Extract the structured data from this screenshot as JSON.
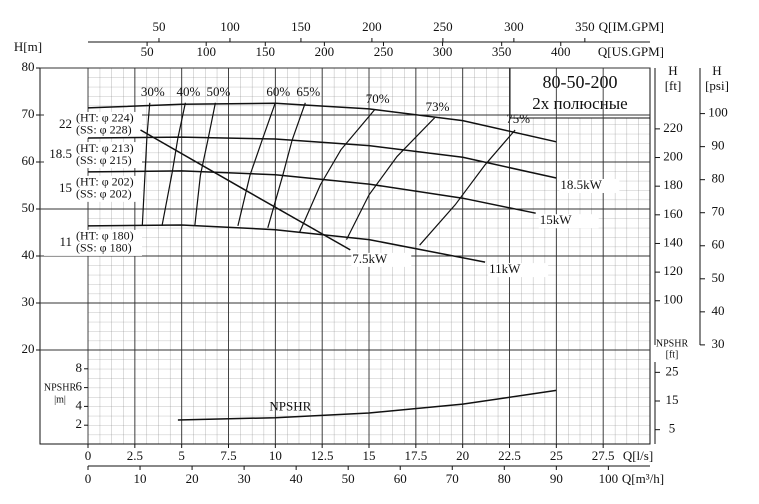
{
  "chart_data": {
    "type": "line",
    "title": "80-50-200",
    "subtitle": "2х  полюсные",
    "xlabel": "Q[l/s]",
    "xlim": [
      0,
      30
    ],
    "xticks": [
      0,
      2.5,
      5,
      7.5,
      10,
      12.5,
      15,
      17.5,
      20,
      22.5,
      25,
      27.5
    ],
    "x2label": "Q[m³/h]",
    "x2lim": [
      0,
      108
    ],
    "x2ticks": [
      0,
      10,
      20,
      30,
      40,
      50,
      60,
      70,
      80,
      90,
      100
    ],
    "x3label": "Q[US.GPM]",
    "x3lim": [
      0,
      475.5
    ],
    "x3ticks": [
      50,
      100,
      150,
      200,
      250,
      300,
      350,
      400
    ],
    "x4label": "Q[IM.GPM]",
    "x4lim": [
      0,
      395.9
    ],
    "x4ticks": [
      50,
      100,
      150,
      200,
      250,
      300,
      350
    ],
    "ylabel": "H[m]",
    "ylim": [
      0,
      80
    ],
    "yticks": [
      20,
      30,
      40,
      50,
      60,
      70,
      80
    ],
    "y2label": "H",
    "y2unit": "[ft]",
    "y2lim": [
      0,
      262.5
    ],
    "y2ticks": [
      100,
      120,
      140,
      160,
      180,
      200,
      220
    ],
    "y3label": "H",
    "y3unit": "[psi]",
    "y3lim": [
      0,
      113.8
    ],
    "y3ticks": [
      30,
      40,
      50,
      60,
      70,
      80,
      90,
      100
    ],
    "y4label": "NPSHR",
    "y4unit": "|m|",
    "y4lim": [
      0,
      40
    ],
    "y4ticks": [
      2,
      4,
      6,
      8
    ],
    "y5label": "NPSHR",
    "y5unit": "[ft]",
    "y5lim": [
      0,
      131.2
    ],
    "y5ticks": [
      5,
      15,
      25
    ],
    "grid": true,
    "color": "#111111",
    "series": [
      {
        "name": "22",
        "labels": [
          "(HT: φ 224)",
          "(SS: φ 228)"
        ],
        "x": [
          0,
          5,
          10,
          15,
          20,
          25
        ],
        "values": [
          71.5,
          72.3,
          72.5,
          71.3,
          68.8,
          64.3
        ]
      },
      {
        "name": "18.5",
        "labels": [
          "(HT: φ 213)",
          "(SS: φ 215)"
        ],
        "x": [
          0,
          5,
          10,
          15,
          20,
          25
        ],
        "values": [
          65.1,
          65.3,
          64.9,
          63.5,
          61,
          56.6
        ],
        "power": "18.5kW"
      },
      {
        "name": "15",
        "labels": [
          "(HT: φ 202)",
          "(SS: φ 202)"
        ],
        "x": [
          0,
          5,
          10,
          15,
          20,
          23.9
        ],
        "values": [
          57.9,
          58.1,
          57.3,
          55.3,
          52.3,
          49.1
        ],
        "power": "15kW"
      },
      {
        "name": "11",
        "labels": [
          "(HT: φ 180)",
          "(SS: φ 180)"
        ],
        "x": [
          0,
          5,
          10,
          15,
          21.2
        ],
        "values": [
          46.4,
          46.6,
          45.6,
          43.5,
          38.7
        ],
        "power": "11kW"
      }
    ],
    "power_line": {
      "name": "7.5kW",
      "x": [
        2.8,
        8.4,
        14
      ],
      "values": [
        66.8,
        54,
        41.3
      ]
    },
    "efficiency": [
      {
        "name": "30%",
        "x": [
          3.3,
          3.15,
          3.05,
          2.9
        ],
        "values": [
          72.6,
          65.7,
          57.9,
          46.4
        ]
      },
      {
        "name": "40%",
        "x": [
          5.2,
          4.8,
          4.5,
          3.95
        ],
        "values": [
          72.6,
          65.1,
          57.9,
          46.4
        ]
      },
      {
        "name": "50%",
        "x": [
          6.8,
          6.4,
          6,
          5.7
        ],
        "values": [
          72.6,
          64.7,
          57.2,
          46.4
        ]
      },
      {
        "name": "60%",
        "x": [
          10,
          9.3,
          8.65,
          8
        ],
        "values": [
          72.6,
          64.7,
          57.2,
          46.4
        ]
      },
      {
        "name": "65%",
        "x": [
          11.6,
          10.9,
          10.4,
          9.6
        ],
        "values": [
          72.6,
          64.7,
          57.2,
          46
        ]
      },
      {
        "name": "70%",
        "x": [
          15.3,
          13.5,
          12.4,
          11.3
        ],
        "values": [
          71.1,
          62.6,
          55.1,
          45.1
        ]
      },
      {
        "name": "73%",
        "x": [
          18.5,
          16.5,
          15,
          13.8
        ],
        "values": [
          69.4,
          61.2,
          53,
          43.5
        ]
      },
      {
        "name": "75%",
        "x": [
          22.8,
          21.2,
          19.6,
          17.7
        ],
        "values": [
          66.8,
          59.4,
          50.9,
          42.3
        ]
      }
    ],
    "npshr": {
      "name": "NPSHR",
      "axis": "y4",
      "x": [
        4.8,
        10,
        15,
        20,
        25
      ],
      "values": [
        2.55,
        2.8,
        3.3,
        4.25,
        5.7
      ]
    }
  }
}
